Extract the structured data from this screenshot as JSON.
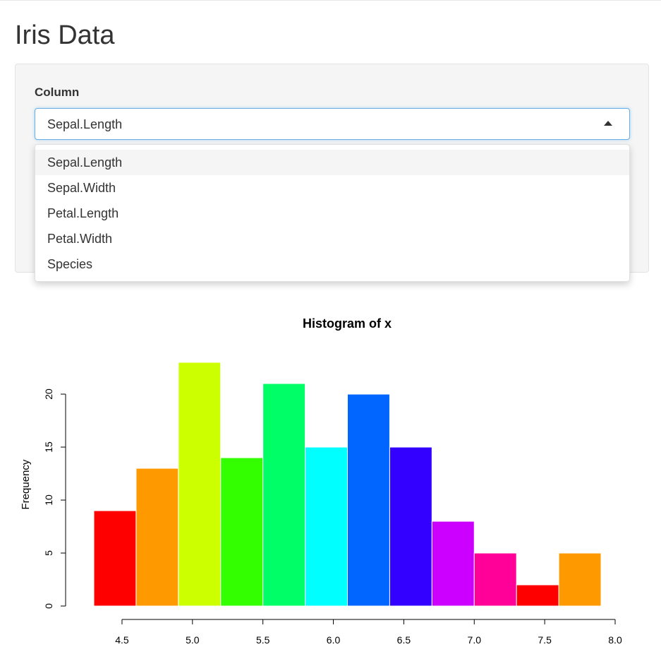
{
  "header": {
    "title": "Iris Data"
  },
  "input": {
    "label": "Column",
    "selected": "Sepal.Length",
    "options": [
      "Sepal.Length",
      "Sepal.Width",
      "Petal.Length",
      "Petal.Width",
      "Species"
    ]
  },
  "chart_data": {
    "type": "histogram",
    "title": "Histogram of x",
    "y_label": "Frequency",
    "bins": [
      4.3,
      4.6,
      4.9,
      5.2,
      5.5,
      5.8,
      6.1,
      6.4,
      6.7,
      7.0,
      7.3,
      7.6,
      7.9
    ],
    "values": [
      9,
      13,
      23,
      14,
      21,
      15,
      20,
      15,
      8,
      5,
      2,
      5
    ],
    "colors": [
      "#ff0000",
      "#ff9900",
      "#ccff00",
      "#33ff00",
      "#00ff66",
      "#00ffff",
      "#0066ff",
      "#3300ff",
      "#cc00ff",
      "#ff0099",
      "#ff0000",
      "#ff9900"
    ],
    "xlim": [
      4.3,
      8.0
    ],
    "ylim": [
      0,
      23
    ],
    "xticks": [
      4.5,
      {
        "value": 5,
        "label": "5.0"
      },
      5.5,
      {
        "value": 6,
        "label": "6.0"
      },
      6.5,
      {
        "value": 7,
        "label": "7.0"
      },
      7.5,
      {
        "value": 8,
        "label": "8.0"
      }
    ],
    "yticks": [
      0,
      5,
      10,
      15,
      20
    ]
  }
}
